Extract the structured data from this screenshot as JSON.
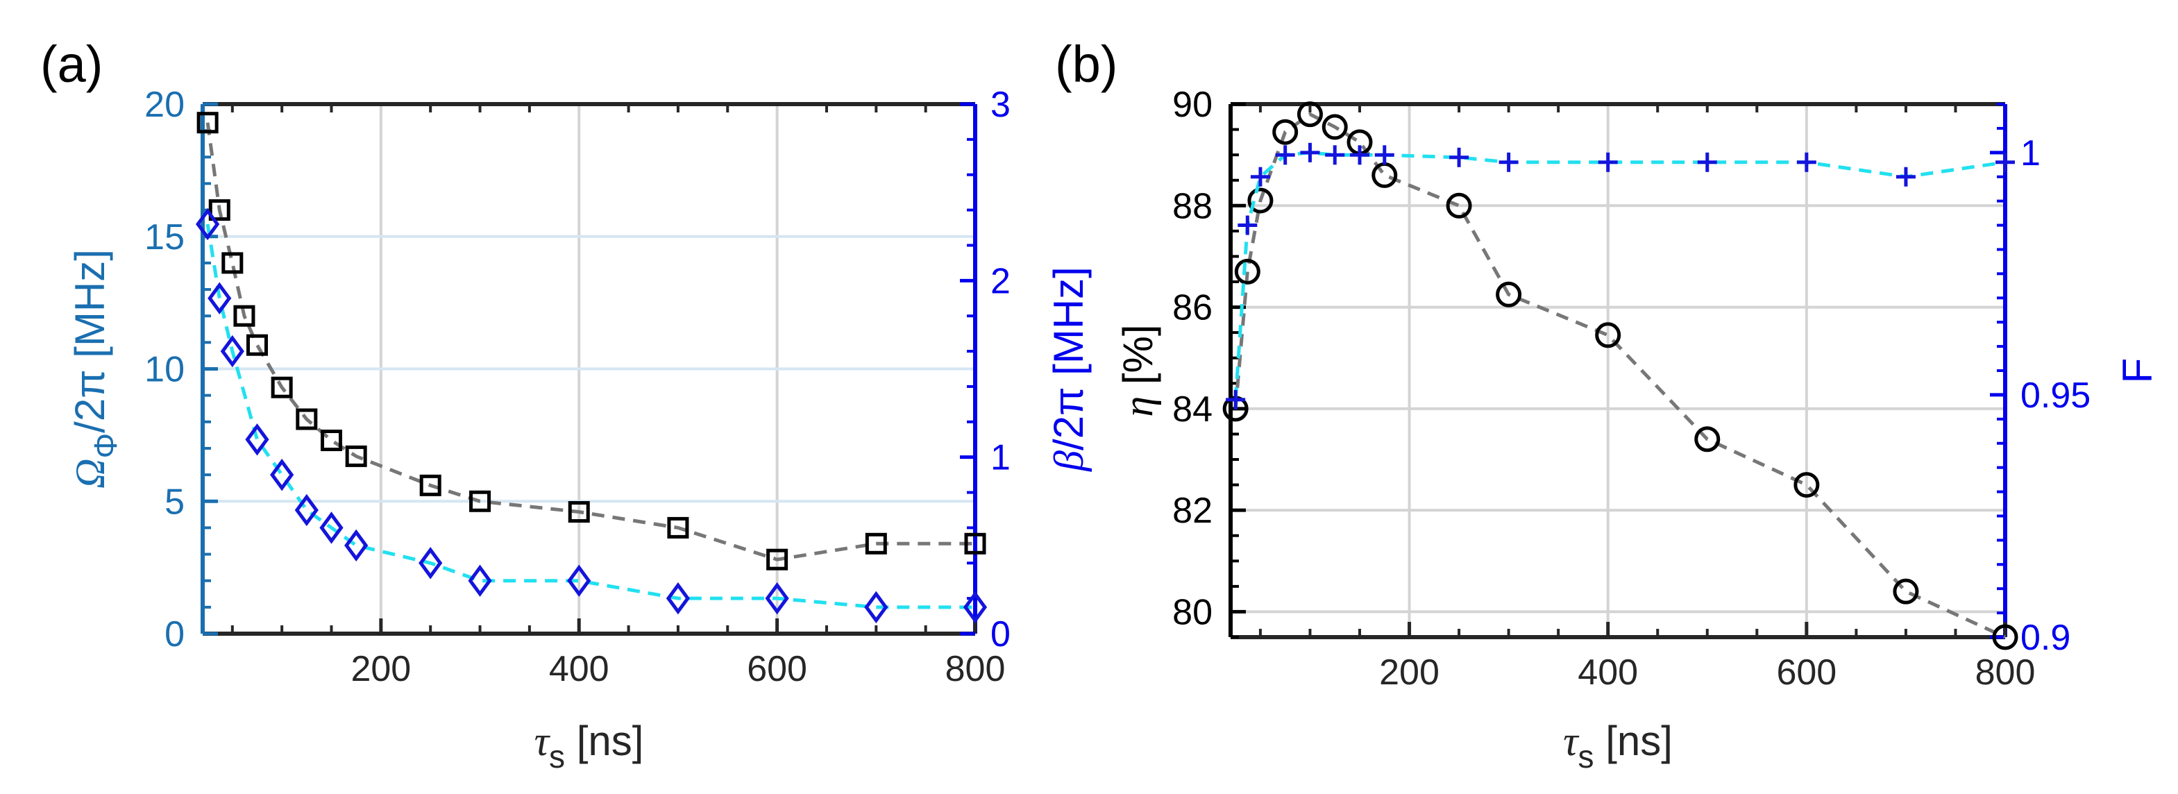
{
  "chart_data": [
    {
      "panel_label": "(a)",
      "type": "line",
      "xlabel": {
        "sym": "τ",
        "sub": "s",
        "rest": " [ns]"
      },
      "xlim": [
        20,
        800
      ],
      "xticks": [
        200,
        400,
        600,
        800
      ],
      "ylabel_left": {
        "sym": "Ω",
        "sub": "Φ",
        "rest": "/2π [MHz]"
      },
      "ylim_left": [
        0,
        20
      ],
      "yticks_left": [
        0,
        5,
        10,
        15,
        20
      ],
      "ylabel_right": {
        "sym": "β",
        "rest": "/2π [MHz]"
      },
      "ylim_right": [
        0,
        3
      ],
      "yticks_right": [
        0,
        1,
        2,
        3
      ],
      "grid": true,
      "left_axis_color": "#1a6fb0",
      "right_axis_color": "#0000ee",
      "series": [
        {
          "axis": "left",
          "marker": "square",
          "color": "#000000",
          "line_color": "#777777",
          "x": [
            25,
            37,
            50,
            62,
            75,
            100,
            125,
            150,
            175,
            200,
            250,
            300,
            400,
            500,
            600,
            700,
            800
          ],
          "y": [
            19.3,
            16.0,
            14.0,
            12.0,
            10.9,
            9.3,
            8.1,
            7.3,
            6.7,
            null,
            5.6,
            5.0,
            4.6,
            4.0,
            2.8,
            3.4,
            3.4
          ]
        },
        {
          "axis": "right",
          "marker": "diamond",
          "color": "#1414dc",
          "line_color": "#22e0f0",
          "x": [
            25,
            37,
            50,
            75,
            100,
            125,
            150,
            175,
            250,
            300,
            400,
            500,
            600,
            700,
            800
          ],
          "y": [
            2.32,
            1.9,
            1.6,
            1.1,
            0.9,
            0.7,
            0.6,
            0.5,
            0.4,
            0.3,
            0.3,
            0.2,
            0.2,
            0.15,
            0.15
          ]
        }
      ]
    },
    {
      "panel_label": "(b)",
      "type": "line",
      "xlabel": {
        "sym": "τ",
        "sub": "s",
        "rest": " [ns]"
      },
      "xlim": [
        20,
        800
      ],
      "xticks": [
        200,
        400,
        600,
        800
      ],
      "ylabel_left": {
        "sym": "η",
        "rest": " [%]"
      },
      "ylim_left": [
        79.5,
        90
      ],
      "yticks_left": [
        80,
        82,
        84,
        86,
        88,
        90
      ],
      "ylabel_right": {
        "sym": "",
        "rest": "F"
      },
      "ylim_right": [
        0.9,
        1.01
      ],
      "yticks_right": [
        0.9,
        0.95,
        1
      ],
      "ytick_labels_right": [
        "0.9",
        "0.95",
        "1"
      ],
      "grid": true,
      "left_axis_color": "#000000",
      "right_axis_color": "#0000ee",
      "series": [
        {
          "axis": "left",
          "marker": "circle",
          "color": "#000000",
          "line_color": "#777777",
          "x": [
            25,
            37,
            50,
            75,
            100,
            125,
            150,
            175,
            250,
            300,
            400,
            500,
            600,
            700,
            800
          ],
          "y": [
            84.0,
            86.7,
            88.1,
            89.45,
            89.8,
            89.55,
            89.25,
            88.6,
            88.0,
            86.25,
            85.45,
            83.4,
            82.5,
            80.4,
            79.5
          ]
        },
        {
          "axis": "right",
          "marker": "plus",
          "color": "#1414dc",
          "line_color": "#22e0f0",
          "x": [
            25,
            37,
            50,
            75,
            100,
            125,
            150,
            175,
            250,
            300,
            400,
            500,
            600,
            700,
            800
          ],
          "y": [
            0.949,
            0.985,
            0.995,
            0.9995,
            1.0,
            0.9995,
            0.9995,
            0.9995,
            0.999,
            0.998,
            0.998,
            0.998,
            0.998,
            0.995,
            0.998
          ]
        }
      ]
    }
  ]
}
